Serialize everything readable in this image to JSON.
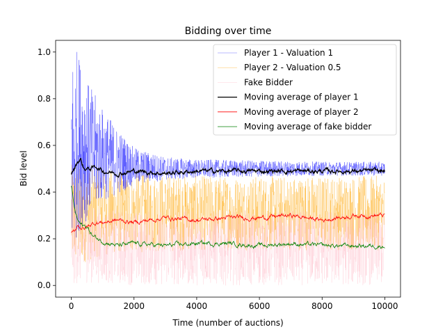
{
  "chart_data": {
    "type": "line",
    "title": "Bidding over time",
    "xlabel": "Time (number of auctions)",
    "ylabel": "Bid level",
    "xlim": [
      -500,
      10500
    ],
    "ylim": [
      -0.05,
      1.05
    ],
    "x_ticks": [
      0,
      2000,
      4000,
      6000,
      8000,
      10000
    ],
    "y_ticks": [
      0.0,
      0.2,
      0.4,
      0.6,
      0.8,
      1.0
    ],
    "x_tick_labels": [
      "0",
      "2000",
      "4000",
      "6000",
      "8000",
      "10000"
    ],
    "y_tick_labels": [
      "0.0",
      "0.2",
      "0.4",
      "0.6",
      "0.8",
      "1.0"
    ],
    "grid": false,
    "legend_position": "top-right",
    "series": [
      {
        "name": "Player 1 - Valuation 1",
        "color": "#0000ff",
        "style": "raw",
        "x": [
          0,
          200,
          500,
          1000,
          1500,
          2000,
          3000,
          4000,
          6000,
          8000,
          10000
        ],
        "center": [
          0.55,
          0.62,
          0.58,
          0.56,
          0.53,
          0.51,
          0.5,
          0.5,
          0.5,
          0.5,
          0.5
        ],
        "spread": [
          0.45,
          0.4,
          0.3,
          0.2,
          0.14,
          0.08,
          0.05,
          0.04,
          0.035,
          0.03,
          0.03
        ]
      },
      {
        "name": "Player 2 - Valuation 0.5",
        "color": "#ffa500",
        "style": "raw",
        "x": [
          0,
          500,
          1000,
          2000,
          4000,
          6000,
          8000,
          10000
        ],
        "center": [
          0.3,
          0.3,
          0.31,
          0.31,
          0.31,
          0.31,
          0.31,
          0.31
        ],
        "spread": [
          0.22,
          0.2,
          0.18,
          0.17,
          0.16,
          0.16,
          0.16,
          0.16
        ]
      },
      {
        "name": "Fake Bidder",
        "color": "#ffc0cb",
        "style": "raw",
        "x": [
          0,
          500,
          1000,
          2000,
          4000,
          6000,
          8000,
          10000
        ],
        "center": [
          0.2,
          0.18,
          0.17,
          0.16,
          0.16,
          0.16,
          0.16,
          0.16
        ],
        "spread": [
          0.2,
          0.17,
          0.16,
          0.16,
          0.16,
          0.16,
          0.16,
          0.16
        ]
      },
      {
        "name": "Moving average of player 1",
        "color": "#000000",
        "style": "avg",
        "x": [
          0,
          100,
          200,
          300,
          400,
          600,
          800,
          1000,
          1500,
          2000,
          3000,
          4000,
          5000,
          6000,
          7000,
          8000,
          9000,
          10000
        ],
        "values": [
          0.48,
          0.5,
          0.53,
          0.54,
          0.5,
          0.5,
          0.51,
          0.49,
          0.48,
          0.49,
          0.48,
          0.49,
          0.49,
          0.49,
          0.49,
          0.49,
          0.49,
          0.49
        ]
      },
      {
        "name": "Moving average of player 2",
        "color": "#ff0000",
        "style": "avg",
        "x": [
          0,
          100,
          200,
          300,
          400,
          600,
          800,
          1000,
          1500,
          2000,
          3000,
          4000,
          5000,
          6000,
          7000,
          8000,
          9000,
          10000
        ],
        "values": [
          0.22,
          0.23,
          0.26,
          0.25,
          0.24,
          0.26,
          0.27,
          0.27,
          0.28,
          0.27,
          0.29,
          0.28,
          0.29,
          0.29,
          0.3,
          0.28,
          0.3,
          0.3
        ]
      },
      {
        "name": "Moving average of fake bidder",
        "color": "#008000",
        "style": "avg",
        "x": [
          0,
          50,
          100,
          200,
          300,
          500,
          700,
          1000,
          1500,
          2000,
          3000,
          4000,
          5000,
          6000,
          7000,
          8000,
          9000,
          10000
        ],
        "values": [
          0.43,
          0.38,
          0.33,
          0.28,
          0.26,
          0.25,
          0.21,
          0.19,
          0.17,
          0.18,
          0.17,
          0.18,
          0.18,
          0.17,
          0.18,
          0.17,
          0.17,
          0.17
        ]
      }
    ]
  }
}
